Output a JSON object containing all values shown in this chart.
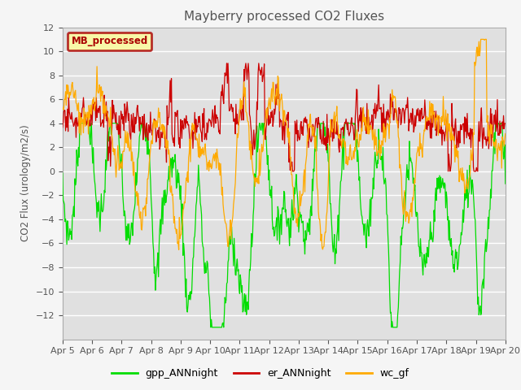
{
  "title": "Mayberry processed CO2 Fluxes",
  "ylabel": "CO2 Flux (urology/m2/s)",
  "ylim": [
    -14,
    12
  ],
  "legend_label": "MB_processed",
  "legend_box_color": "#ffff99",
  "legend_box_edge_color": "#aa0000",
  "line_gpp_color": "#00dd00",
  "line_er_color": "#cc0000",
  "line_wc_color": "#ffaa00",
  "line_width": 0.9,
  "bg_color": "#e0e0e0",
  "grid_color": "#ffffff",
  "legend_entries": [
    "gpp_ANNnight",
    "er_ANNnight",
    "wc_gf"
  ]
}
